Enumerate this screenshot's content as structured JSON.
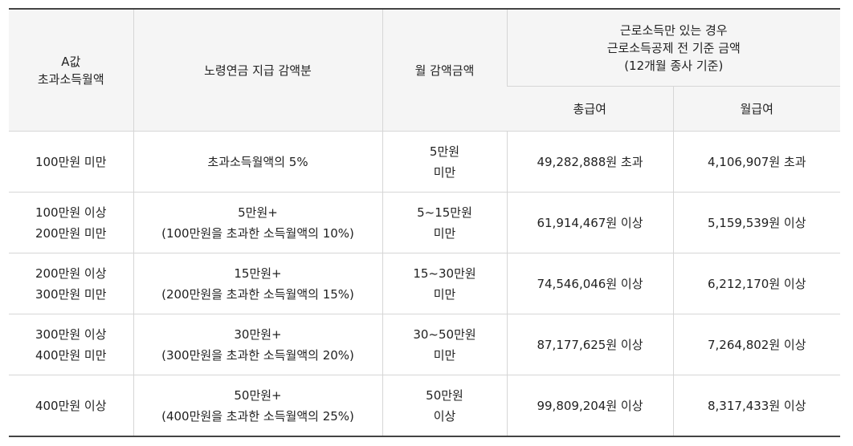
{
  "header": {
    "col1": [
      "A값",
      "초과소득월액"
    ],
    "col2": "노령연금 지급 감액분",
    "col3": "월 감액금액",
    "group": [
      "근로소득만 있는 경우",
      "근로소득공제 전 기준 금액",
      "(12개월 종사 기준)"
    ],
    "sub1": "총급여",
    "sub2": "월급여"
  },
  "rows": [
    {
      "a": [
        "100만원 미만"
      ],
      "reduction": [
        "초과소득월액의 5%"
      ],
      "monthly": [
        "5만원",
        "미만"
      ],
      "total": "49,282,888원 초과",
      "month_pay": "4,106,907원 초과"
    },
    {
      "a": [
        "100만원 이상",
        "200만원 미만"
      ],
      "reduction": [
        "5만원+",
        "(100만원을 초과한 소득월액의 10%)"
      ],
      "monthly": [
        "5~15만원",
        "미만"
      ],
      "total": "61,914,467원 이상",
      "month_pay": "5,159,539원 이상"
    },
    {
      "a": [
        "200만원 이상",
        "300만원 미만"
      ],
      "reduction": [
        "15만원+",
        "(200만원을 초과한 소득월액의 15%)"
      ],
      "monthly": [
        "15~30만원",
        "미만"
      ],
      "total": "74,546,046원 이상",
      "month_pay": "6,212,170원 이상"
    },
    {
      "a": [
        "300만원 이상",
        "400만원 미만"
      ],
      "reduction": [
        "30만원+",
        "(300만원을 초과한 소득월액의 20%)"
      ],
      "monthly": [
        "30~50만원",
        "미만"
      ],
      "total": "87,177,625원 이상",
      "month_pay": "7,264,802원 이상"
    },
    {
      "a": [
        "400만원 이상"
      ],
      "reduction": [
        "50만원+",
        "(400만원을 초과한 소득월액의 25%)"
      ],
      "monthly": [
        "50만원",
        "이상"
      ],
      "total": "99,809,204원 이상",
      "month_pay": "8,317,433원 이상"
    }
  ]
}
